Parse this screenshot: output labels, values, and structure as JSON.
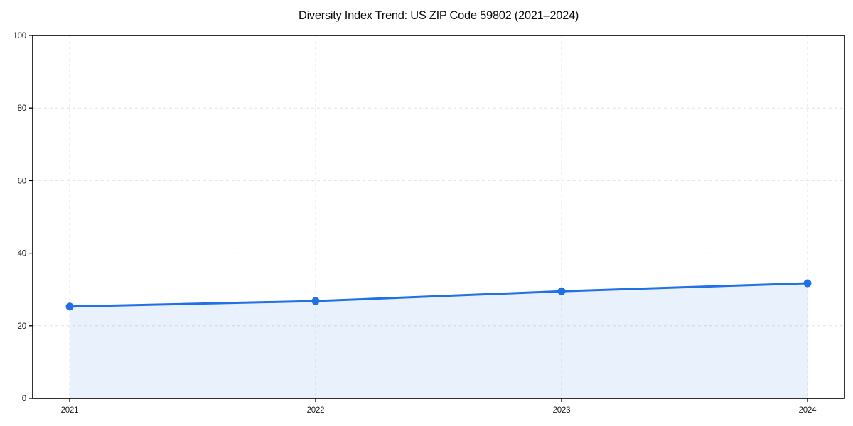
{
  "chart_data": {
    "type": "area",
    "title": "Diversity Index Trend: US ZIP Code 59802 (2021–2024)",
    "x": [
      "2021",
      "2022",
      "2023",
      "2024"
    ],
    "series": [
      {
        "name": "Diversity Index",
        "values": [
          25.3,
          26.8,
          29.5,
          31.7
        ]
      }
    ],
    "xlabel": "",
    "ylabel": "",
    "ylim": [
      0,
      100
    ],
    "yticks": [
      0,
      20,
      40,
      60,
      80,
      100
    ],
    "grid": "dashed-both-axes",
    "legend": "none",
    "colors": {
      "line": "#2171e5",
      "marker": "#2171e5",
      "fill": "#2171e5",
      "fill_opacity": 0.1,
      "gridline": "#e2e2e2",
      "spine": "#000000",
      "tick_label": "#1a1a1a",
      "background": "#ffffff"
    }
  }
}
